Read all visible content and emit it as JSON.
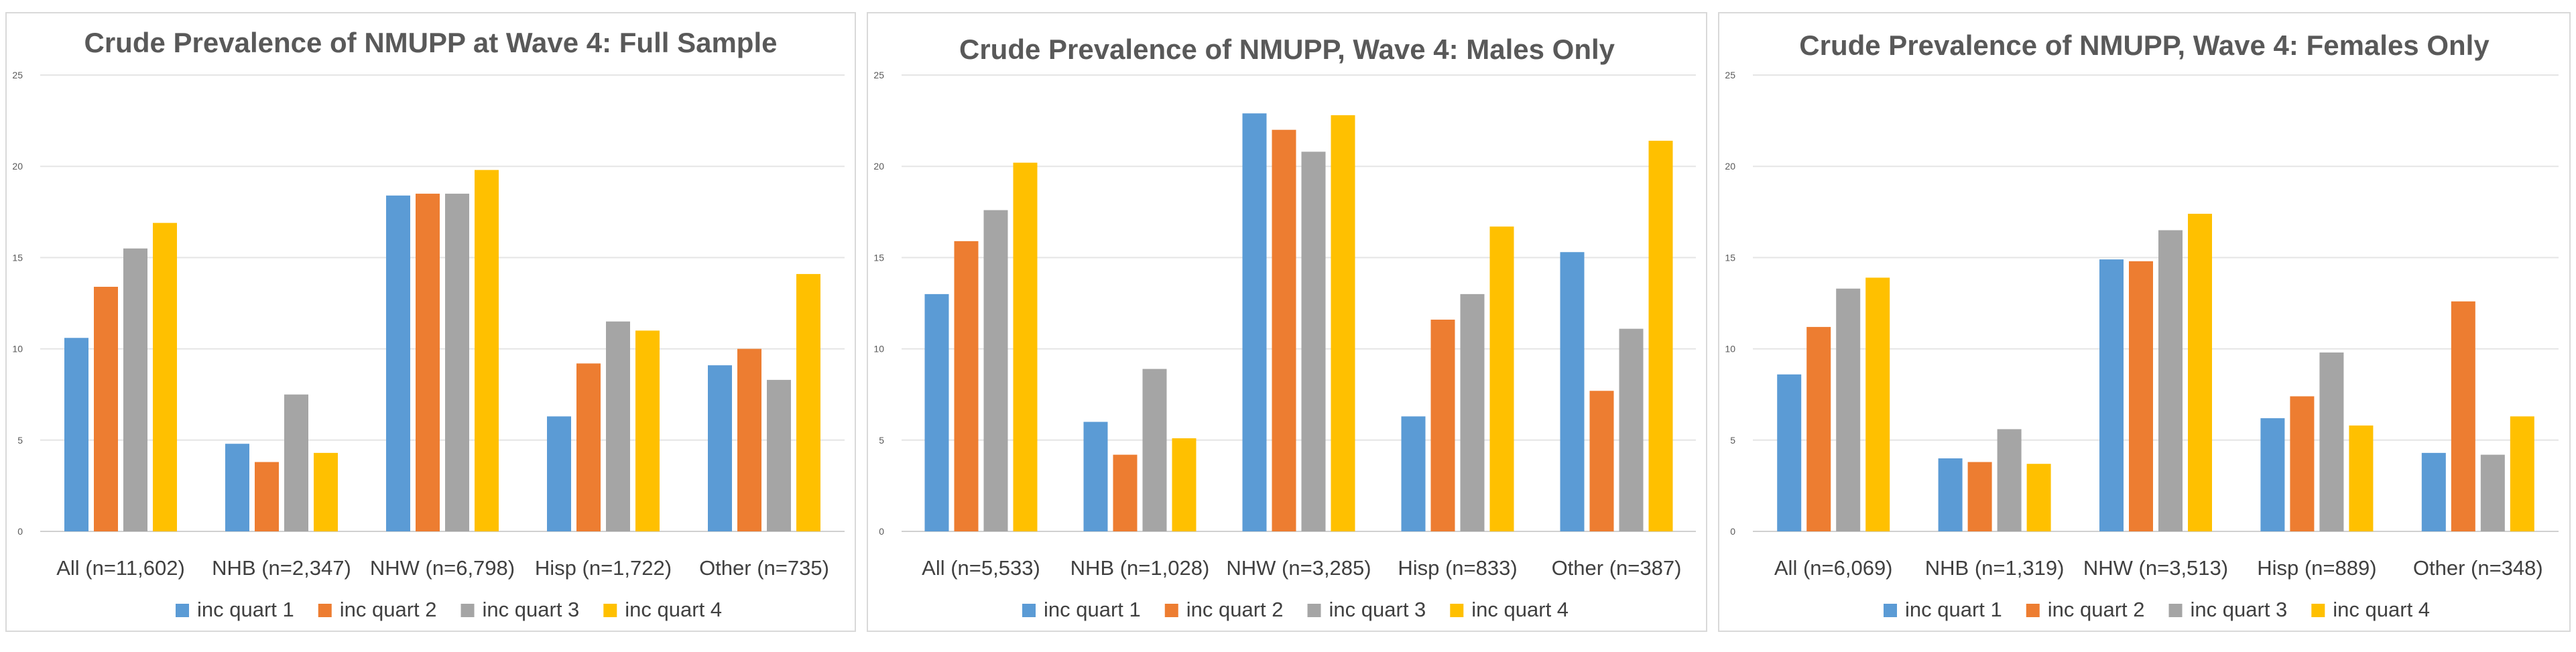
{
  "chart_data": [
    {
      "type": "bar",
      "title": "Crude Prevalence of NMUPP at Wave 4: Full  Sample",
      "categories": [
        "All (n=11,602)",
        "NHB (n=2,347)",
        "NHW (n=6,798)",
        "Hisp (n=1,722)",
        "Other (n=735)"
      ],
      "series": [
        {
          "name": "inc quart 1",
          "color": "#5B9BD5",
          "values": [
            10.6,
            4.8,
            18.4,
            6.3,
            9.1
          ]
        },
        {
          "name": "inc quart 2",
          "color": "#ED7D31",
          "values": [
            13.4,
            3.8,
            18.5,
            9.2,
            10.0
          ]
        },
        {
          "name": "inc quart 3",
          "color": "#A5A5A5",
          "values": [
            15.5,
            7.5,
            18.5,
            11.5,
            8.3
          ]
        },
        {
          "name": "inc quart 4",
          "color": "#FFC000",
          "values": [
            16.9,
            4.3,
            19.8,
            11.0,
            14.1
          ]
        }
      ],
      "ylim": [
        0,
        25
      ],
      "yticks": [
        0,
        5,
        10,
        15,
        20,
        25
      ],
      "grid": true,
      "legend": "bottom"
    },
    {
      "type": "bar",
      "title": "Crude Prevalence of NMUPP, Wave 4: Males Only",
      "categories": [
        "All (n=5,533)",
        "NHB (n=1,028)",
        "NHW (n=3,285)",
        "Hisp (n=833)",
        "Other (n=387)"
      ],
      "series": [
        {
          "name": "inc quart 1",
          "color": "#5B9BD5",
          "values": [
            13.0,
            6.0,
            22.9,
            6.3,
            15.3
          ]
        },
        {
          "name": "inc quart 2",
          "color": "#ED7D31",
          "values": [
            15.9,
            4.2,
            22.0,
            11.6,
            7.7
          ]
        },
        {
          "name": "inc quart 3",
          "color": "#A5A5A5",
          "values": [
            17.6,
            8.9,
            20.8,
            13.0,
            11.1
          ]
        },
        {
          "name": "inc quart 4",
          "color": "#FFC000",
          "values": [
            20.2,
            5.1,
            22.8,
            16.7,
            21.4
          ]
        }
      ],
      "ylim": [
        0,
        25
      ],
      "yticks": [
        0,
        5,
        10,
        15,
        20,
        25
      ],
      "grid": true,
      "legend": "bottom"
    },
    {
      "type": "bar",
      "title": "Crude Prevalence of NMUPP, Wave 4: Females Only",
      "categories": [
        "All (n=6,069)",
        "NHB (n=1,319)",
        "NHW (n=3,513)",
        "Hisp (n=889)",
        "Other (n=348)"
      ],
      "series": [
        {
          "name": "inc quart 1",
          "color": "#5B9BD5",
          "values": [
            8.6,
            4.0,
            14.9,
            6.2,
            4.3
          ]
        },
        {
          "name": "inc quart 2",
          "color": "#ED7D31",
          "values": [
            11.2,
            3.8,
            14.8,
            7.4,
            12.6
          ]
        },
        {
          "name": "inc quart 3",
          "color": "#A5A5A5",
          "values": [
            13.3,
            5.6,
            16.5,
            9.8,
            4.2
          ]
        },
        {
          "name": "inc quart 4",
          "color": "#FFC000",
          "values": [
            13.9,
            3.7,
            17.4,
            5.8,
            6.3
          ]
        }
      ],
      "ylim": [
        0,
        25
      ],
      "yticks": [
        0,
        5,
        10,
        15,
        20,
        25
      ],
      "grid": true,
      "legend": "bottom"
    }
  ]
}
